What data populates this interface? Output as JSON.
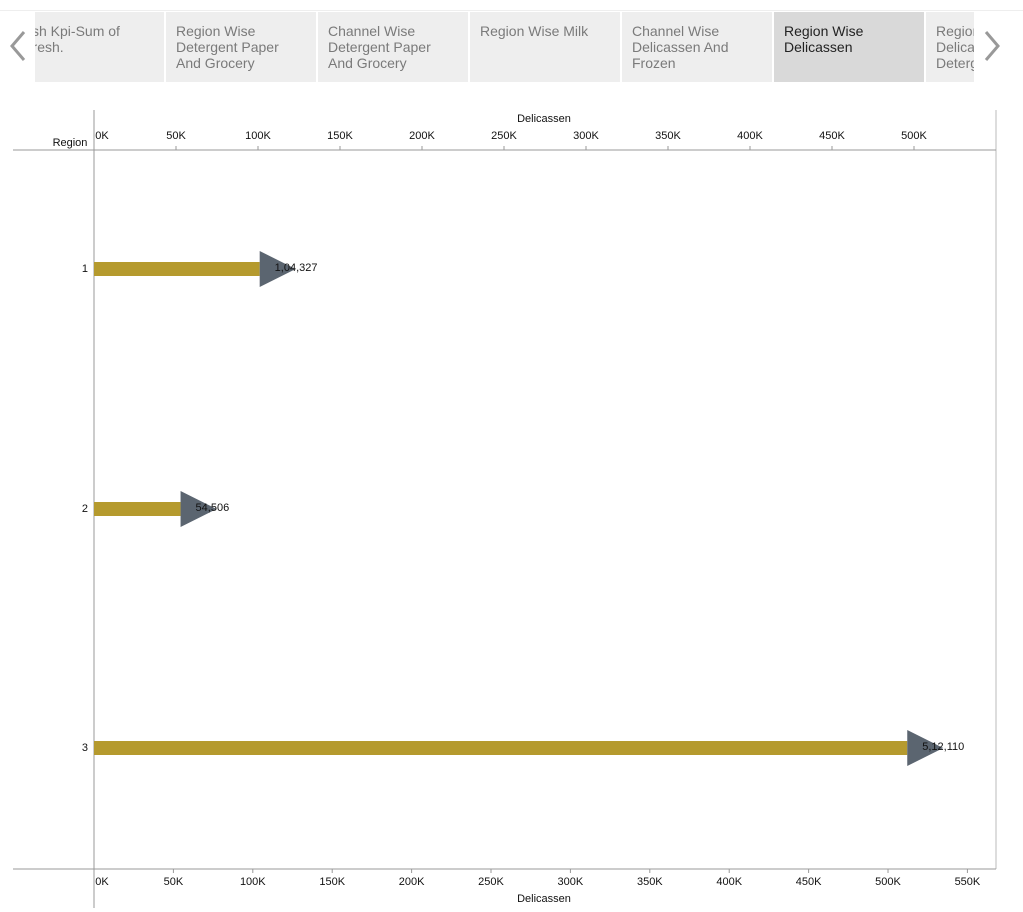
{
  "tabs": [
    "Fresh Kpi-Sum of Fresh.",
    "Region Wise Detergent Paper And Grocery",
    "Channel Wise Detergent Paper And Grocery",
    "Region Wise Milk",
    "Channel Wise Delicassen And Frozen",
    "Region Wise Delicassen",
    "Region Wise Delicassen And Detergent"
  ],
  "selected_tab": 5,
  "chart_data": {
    "type": "bar",
    "orientation": "horizontal",
    "y_label": "Region",
    "x_label": "Delicassen",
    "x2_label": "Delicassen",
    "categories": [
      "1",
      "2",
      "3"
    ],
    "values": [
      104327,
      54506,
      512110
    ],
    "value_labels": [
      "1,04,327",
      "54,506",
      "5,12,110"
    ],
    "color": "#b59a2e",
    "marker_color": "#5b6570",
    "xlim": [
      0,
      568000
    ],
    "xticks": [
      {
        "value": 0,
        "label": "0K"
      },
      {
        "value": 50000,
        "label": "50K"
      },
      {
        "value": 100000,
        "label": "100K"
      },
      {
        "value": 150000,
        "label": "150K"
      },
      {
        "value": 200000,
        "label": "200K"
      },
      {
        "value": 250000,
        "label": "250K"
      },
      {
        "value": 300000,
        "label": "300K"
      },
      {
        "value": 350000,
        "label": "350K"
      },
      {
        "value": 400000,
        "label": "400K"
      },
      {
        "value": 450000,
        "label": "450K"
      },
      {
        "value": 500000,
        "label": "500K"
      },
      {
        "value": 550000,
        "label": "550K"
      }
    ],
    "x2lim": [
      0,
      550000
    ],
    "x2ticks": [
      {
        "value": 0,
        "label": "0K"
      },
      {
        "value": 50000,
        "label": "50K"
      },
      {
        "value": 100000,
        "label": "100K"
      },
      {
        "value": 150000,
        "label": "150K"
      },
      {
        "value": 200000,
        "label": "200K"
      },
      {
        "value": 250000,
        "label": "250K"
      },
      {
        "value": 300000,
        "label": "300K"
      },
      {
        "value": 350000,
        "label": "350K"
      },
      {
        "value": 400000,
        "label": "400K"
      },
      {
        "value": 450000,
        "label": "450K"
      },
      {
        "value": 500000,
        "label": "500K"
      }
    ]
  }
}
